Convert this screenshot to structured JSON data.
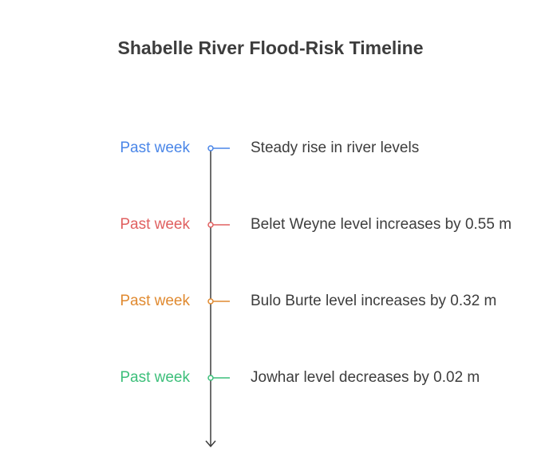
{
  "title": "Shabelle River Flood-Risk Timeline",
  "events": [
    {
      "time": "Past week",
      "text": "Steady rise in river levels",
      "color": "#4a86e8"
    },
    {
      "time": "Past week",
      "text": "Belet Weyne level increases by 0.55 m",
      "color": "#e06060"
    },
    {
      "time": "Past week",
      "text": "Bulo Burte level increases by 0.32 m",
      "color": "#e08a30"
    },
    {
      "time": "Past week",
      "text": "Jowhar level decreases by 0.02 m",
      "color": "#3cbf7a"
    }
  ],
  "axis_color": "#3d3d3d"
}
